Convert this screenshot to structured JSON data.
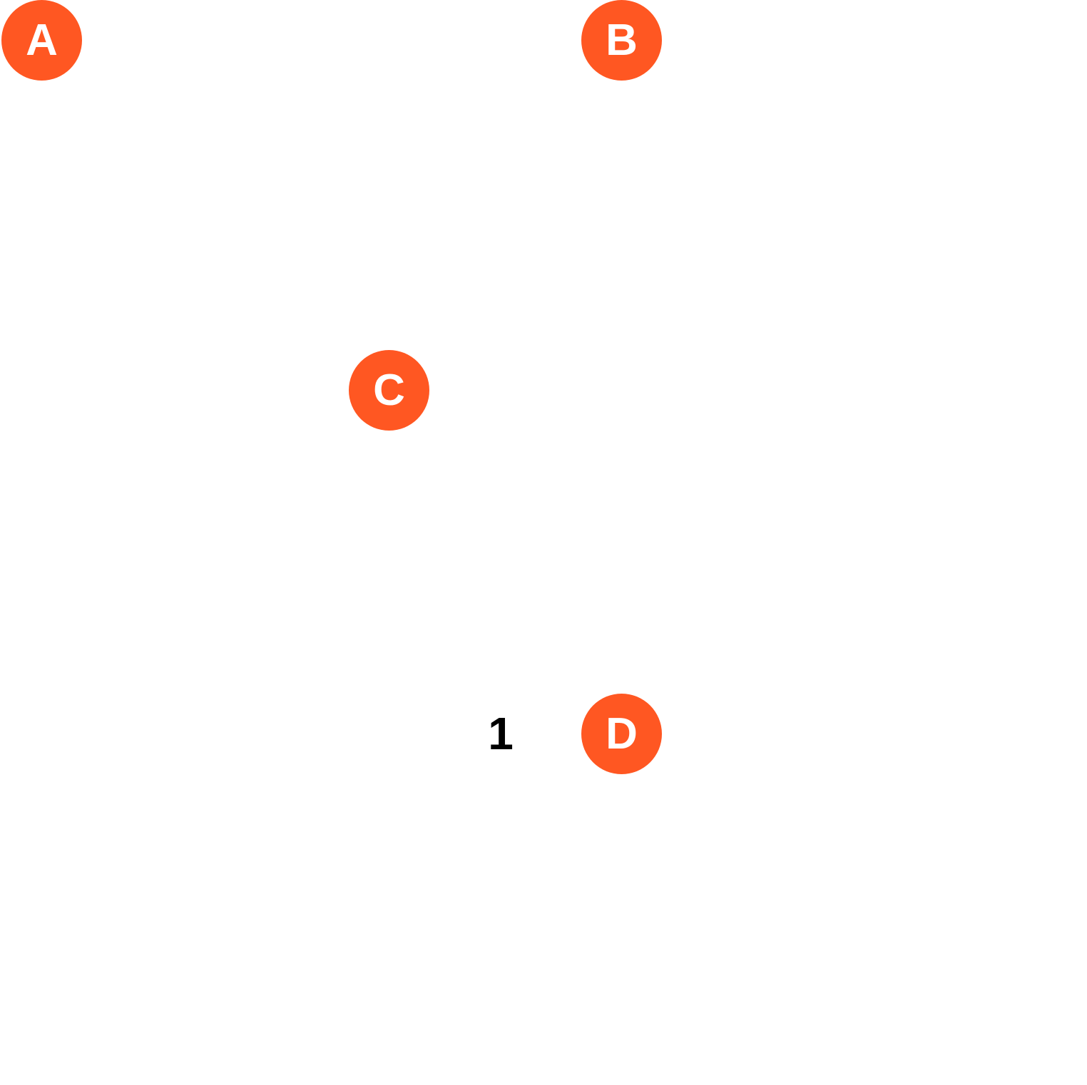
{
  "colors": {
    "marker_fill": "#FF5722",
    "marker_text": "#FFFFFF",
    "label_text": "#000000",
    "background": "#FFFFFF"
  },
  "markers": [
    {
      "label": "A"
    },
    {
      "label": "B"
    },
    {
      "label": "C"
    },
    {
      "label": "D"
    }
  ],
  "number_label": "1"
}
